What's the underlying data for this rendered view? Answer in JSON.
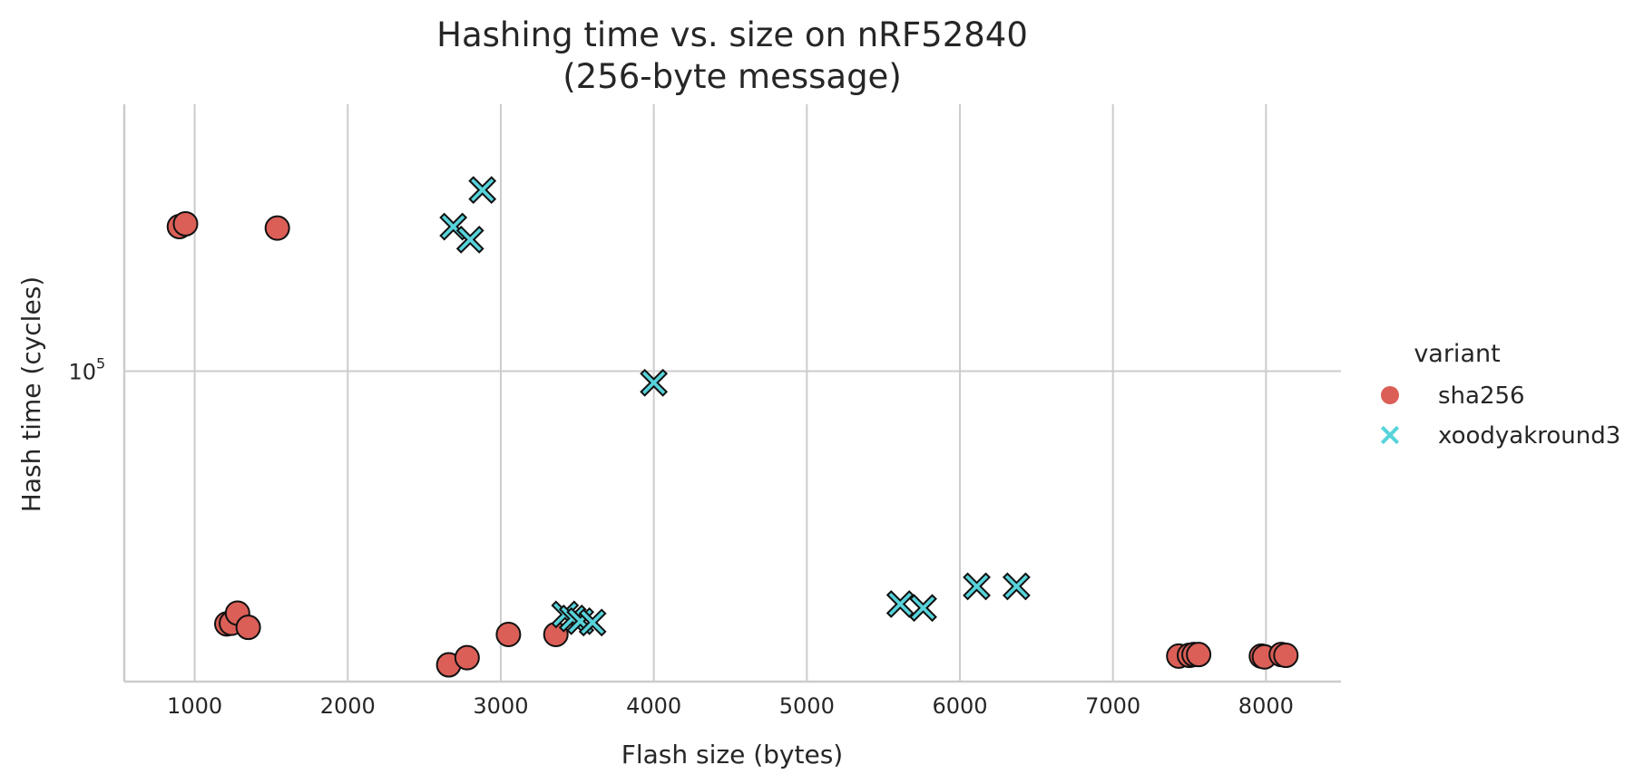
{
  "chart_data": {
    "type": "scatter",
    "title_lines": [
      "Hashing time vs. size on nRF52840",
      "(256-byte message)"
    ],
    "xlabel": "Flash size (bytes)",
    "ylabel": "Hash time (cycles)",
    "y_scale": "log",
    "xlim": [
      540,
      8490
    ],
    "ylim": [
      29000,
      290000
    ],
    "x_ticks": [
      1000,
      2000,
      3000,
      4000,
      5000,
      6000,
      7000,
      8000
    ],
    "x_tick_labels": [
      "1000",
      "2000",
      "3000",
      "4000",
      "5000",
      "6000",
      "7000",
      "8000"
    ],
    "y_ticks": [
      100000
    ],
    "y_tick_labels": [
      {
        "base": "10",
        "exp": "5"
      }
    ],
    "grid": true,
    "legend": {
      "title": "variant",
      "position": "right"
    },
    "series": [
      {
        "name": "sha256",
        "marker": "circle",
        "color": "#db5f57",
        "points": [
          {
            "x": 900,
            "y": 178000
          },
          {
            "x": 940,
            "y": 180000
          },
          {
            "x": 1540,
            "y": 177000
          },
          {
            "x": 1210,
            "y": 36500
          },
          {
            "x": 1240,
            "y": 36600
          },
          {
            "x": 1280,
            "y": 38100
          },
          {
            "x": 1350,
            "y": 36000
          },
          {
            "x": 2660,
            "y": 31000
          },
          {
            "x": 2780,
            "y": 31900
          },
          {
            "x": 3050,
            "y": 35000
          },
          {
            "x": 3360,
            "y": 35000
          },
          {
            "x": 7430,
            "y": 32100
          },
          {
            "x": 7500,
            "y": 32200
          },
          {
            "x": 7530,
            "y": 32300
          },
          {
            "x": 7560,
            "y": 32300
          },
          {
            "x": 7970,
            "y": 32100
          },
          {
            "x": 7990,
            "y": 32000
          },
          {
            "x": 8100,
            "y": 32300
          },
          {
            "x": 8130,
            "y": 32200
          }
        ]
      },
      {
        "name": "xoodyakround3",
        "marker": "x",
        "color": "#57d3db",
        "points": [
          {
            "x": 2880,
            "y": 206000
          },
          {
            "x": 2690,
            "y": 178000
          },
          {
            "x": 2800,
            "y": 169000
          },
          {
            "x": 4000,
            "y": 95500
          },
          {
            "x": 3420,
            "y": 37900
          },
          {
            "x": 3470,
            "y": 37300
          },
          {
            "x": 3520,
            "y": 36900
          },
          {
            "x": 3600,
            "y": 36700
          },
          {
            "x": 5610,
            "y": 39500
          },
          {
            "x": 5760,
            "y": 38900
          },
          {
            "x": 6110,
            "y": 42400
          },
          {
            "x": 6370,
            "y": 42400
          }
        ]
      }
    ]
  }
}
